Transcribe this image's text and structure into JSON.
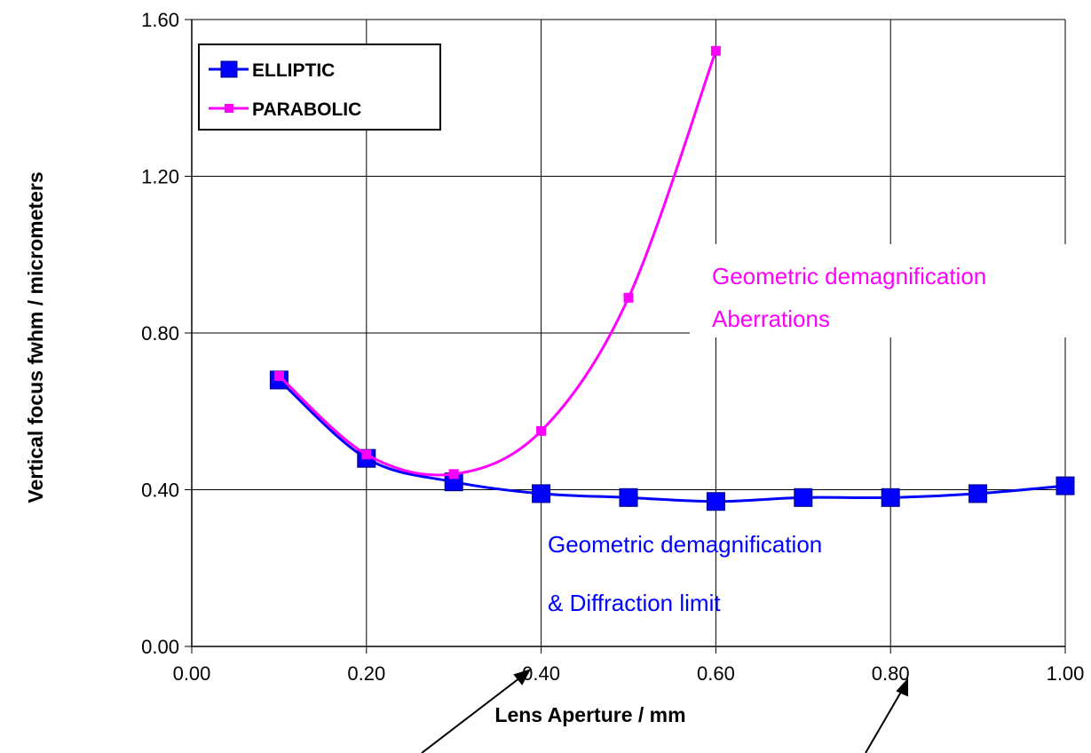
{
  "colors": {
    "elliptic": "#0000ff",
    "elliptic_marker_edge": "#000080",
    "parabolic": "#ff00ff",
    "grid": "#000000",
    "background": "#ffffff"
  },
  "chart_data": {
    "type": "line",
    "xlabel": "Lens Aperture / mm",
    "ylabel": "Vertical focus fwhm / micrometers",
    "xlim": [
      0,
      1.0
    ],
    "ylim": [
      0,
      1.6
    ],
    "x_ticks": [
      "0.00",
      "0.20",
      "0.40",
      "0.60",
      "0.80",
      "1.00"
    ],
    "y_ticks": [
      "0.00",
      "0.40",
      "0.80",
      "1.20",
      "1.60"
    ],
    "grid": true,
    "legend_position": "top-left",
    "series": [
      {
        "name": "ELLIPTIC",
        "color": "#0000ff",
        "marker": "square-large",
        "x": [
          0.1,
          0.2,
          0.3,
          0.4,
          0.5,
          0.6,
          0.7,
          0.8,
          0.9,
          1.0
        ],
        "y": [
          0.68,
          0.48,
          0.42,
          0.39,
          0.38,
          0.37,
          0.38,
          0.38,
          0.39,
          0.41
        ]
      },
      {
        "name": "PARABOLIC",
        "color": "#ff00ff",
        "marker": "square-small",
        "x": [
          0.1,
          0.2,
          0.3,
          0.4,
          0.5,
          0.6
        ],
        "y": [
          0.69,
          0.49,
          0.44,
          0.55,
          0.89,
          1.52
        ]
      }
    ],
    "annotations": [
      {
        "text": "Geometric demagnification",
        "color": "#ff00ff"
      },
      {
        "text": "Aberrations",
        "color": "#ff00ff"
      },
      {
        "text": "Geometric demagnification",
        "color": "#0000ff"
      },
      {
        "text": "& Diffraction limit",
        "color": "#0000ff"
      }
    ]
  }
}
